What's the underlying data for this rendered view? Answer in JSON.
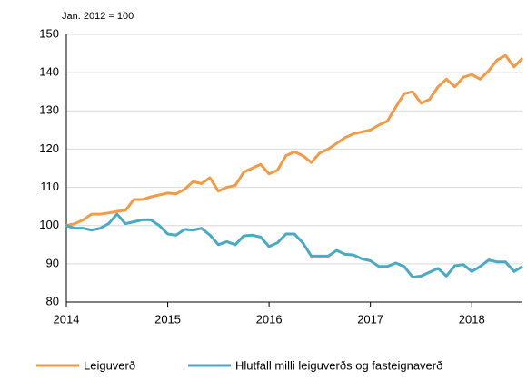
{
  "chart_data": {
    "type": "line",
    "annotation": "Jan. 2012 = 100",
    "x": [
      2014,
      2014.083,
      2014.167,
      2014.25,
      2014.333,
      2014.417,
      2014.5,
      2014.583,
      2014.667,
      2014.75,
      2014.833,
      2014.917,
      2015,
      2015.083,
      2015.167,
      2015.25,
      2015.333,
      2015.417,
      2015.5,
      2015.583,
      2015.667,
      2015.75,
      2015.833,
      2015.917,
      2016,
      2016.083,
      2016.167,
      2016.25,
      2016.333,
      2016.417,
      2016.5,
      2016.583,
      2016.667,
      2016.75,
      2016.833,
      2016.917,
      2017,
      2017.083,
      2017.167,
      2017.25,
      2017.333,
      2017.417,
      2017.5,
      2017.583,
      2017.667,
      2017.75,
      2017.833,
      2017.917,
      2018,
      2018.083,
      2018.167,
      2018.25,
      2018.333,
      2018.417,
      2018.5
    ],
    "series": [
      {
        "name": "Leiguverð",
        "color": "#f39a45",
        "values": [
          100,
          100.5,
          101.5,
          103,
          103,
          103.3,
          103.7,
          104,
          106.8,
          106.8,
          107.5,
          108,
          108.5,
          108.3,
          109.5,
          111.5,
          111,
          112.5,
          109,
          110,
          110.5,
          114,
          115,
          116,
          113.5,
          114.5,
          118.3,
          119.3,
          118.3,
          116.5,
          119,
          120,
          121.5,
          123,
          124,
          124.5,
          125,
          126.3,
          127.3,
          131,
          134.5,
          135,
          132,
          133,
          136.3,
          138.3,
          136.3,
          138.8,
          139.5,
          138.3,
          140.5,
          143.3,
          144.5,
          141.5,
          143.8
        ]
      },
      {
        "name": "Hlutfall milli leiguverðs og fasteignaverð",
        "color": "#4aaac6",
        "values": [
          100,
          99.3,
          99.3,
          98.8,
          99.3,
          100.5,
          103,
          100.5,
          101,
          101.5,
          101.5,
          100,
          97.8,
          97.5,
          99,
          98.8,
          99.3,
          97.5,
          95,
          95.8,
          95,
          97.3,
          97.5,
          97,
          94.5,
          95.5,
          97.8,
          97.8,
          95.5,
          92,
          92,
          92,
          93.5,
          92.5,
          92.3,
          91.3,
          90.8,
          89.3,
          89.3,
          90.2,
          89.3,
          86.5,
          86.8,
          87.8,
          88.8,
          86.8,
          89.5,
          89.8,
          88,
          89.3,
          91,
          90.5,
          90.5,
          88,
          89.3
        ]
      }
    ],
    "xlim": [
      2014,
      2018.5
    ],
    "xticks": [
      2014,
      2015,
      2016,
      2017,
      2018
    ],
    "ylim": [
      80,
      150
    ],
    "yticks": [
      80,
      90,
      100,
      110,
      120,
      130,
      140,
      150
    ],
    "grid": true,
    "legend": "bottom"
  }
}
